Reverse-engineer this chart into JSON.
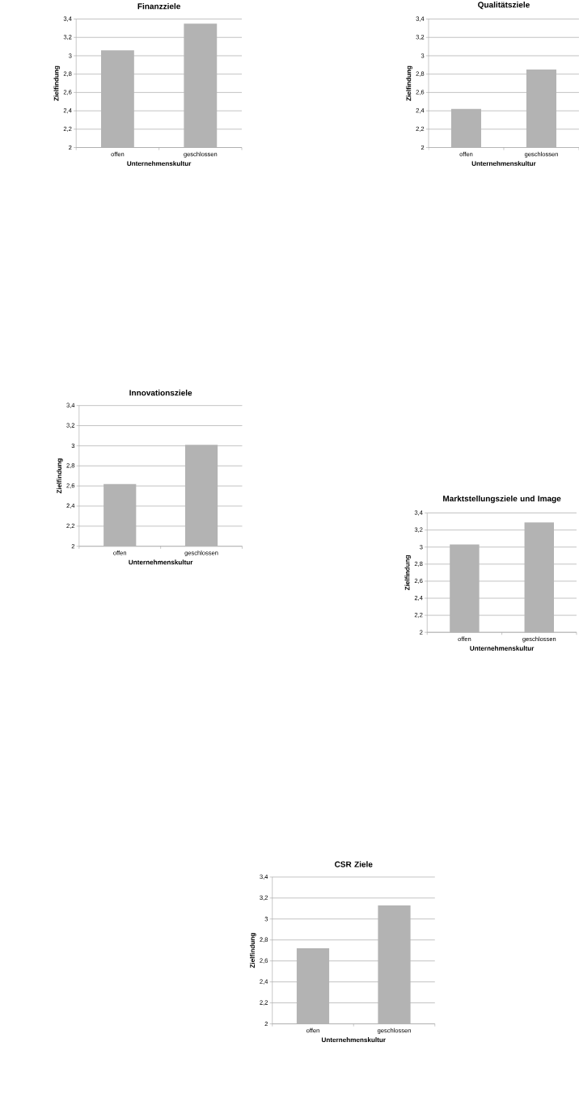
{
  "chart_data": [
    {
      "type": "bar",
      "title": "Finanzziele",
      "xlabel": "Unternehmenskultur",
      "ylabel": "Zielfindung",
      "categories": [
        "offen",
        "geschlossen"
      ],
      "values": [
        3.06,
        3.35
      ],
      "color": "#b3b3b3",
      "ylim": [
        2,
        3.4
      ],
      "yticks": [
        2,
        {
          "value": 2.2,
          "label": "2,2"
        },
        {
          "value": 2.4,
          "label": "2,4"
        },
        {
          "value": 2.6,
          "label": "2,6"
        },
        {
          "value": 2.8,
          "label": "2,8"
        },
        3,
        {
          "value": 3.2,
          "label": "3,2"
        },
        {
          "value": 3.4,
          "label": "3,4"
        }
      ],
      "grid": "y"
    },
    {
      "type": "bar",
      "title": "Qualitätsziele",
      "xlabel": "Unternehmenskultur",
      "ylabel": "Zielfindung",
      "categories": [
        "offen",
        "geschlossen"
      ],
      "values": [
        2.42,
        2.85
      ],
      "color": "#b3b3b3",
      "ylim": [
        2,
        3.4
      ],
      "yticks": [
        2,
        {
          "value": 2.2,
          "label": "2,2"
        },
        {
          "value": 2.4,
          "label": "2,4"
        },
        {
          "value": 2.6,
          "label": "2,6"
        },
        {
          "value": 2.8,
          "label": "2,8"
        },
        3,
        {
          "value": 3.2,
          "label": "3,2"
        },
        {
          "value": 3.4,
          "label": "3,4"
        }
      ],
      "grid": "y"
    },
    {
      "type": "bar",
      "title": "Innovationsziele",
      "xlabel": "Unternehmenskultur",
      "ylabel": "Zielfindung",
      "categories": [
        "offen",
        "geschlossen"
      ],
      "values": [
        2.62,
        3.01
      ],
      "color": "#b3b3b3",
      "ylim": [
        2,
        3.4
      ],
      "yticks": [
        2,
        {
          "value": 2.2,
          "label": "2,2"
        },
        {
          "value": 2.4,
          "label": "2,4"
        },
        {
          "value": 2.6,
          "label": "2,6"
        },
        {
          "value": 2.8,
          "label": "2,8"
        },
        3,
        {
          "value": 3.2,
          "label": "3,2"
        },
        {
          "value": 3.4,
          "label": "3,4"
        }
      ],
      "grid": "y"
    },
    {
      "type": "bar",
      "title": "Marktstellungsziele und Image",
      "xlabel": "Unternehmenskultur",
      "ylabel": "Zielfindung",
      "categories": [
        "offen",
        "geschlossen"
      ],
      "values": [
        3.03,
        3.29
      ],
      "color": "#b3b3b3",
      "ylim": [
        2,
        3.4
      ],
      "yticks": [
        2,
        {
          "value": 2.2,
          "label": "2,2"
        },
        {
          "value": 2.4,
          "label": "2,4"
        },
        {
          "value": 2.6,
          "label": "2,6"
        },
        {
          "value": 2.8,
          "label": "2,8"
        },
        3,
        {
          "value": 3.2,
          "label": "3,2"
        },
        {
          "value": 3.4,
          "label": "3,4"
        }
      ],
      "grid": "y"
    },
    {
      "type": "bar",
      "title": "CSR Ziele",
      "xlabel": "Unternehmenskultur",
      "ylabel": "Zielfindung",
      "categories": [
        "offen",
        "geschlossen"
      ],
      "values": [
        2.72,
        3.13
      ],
      "color": "#b3b3b3",
      "ylim": [
        2,
        3.4
      ],
      "yticks": [
        2,
        {
          "value": 2.2,
          "label": "2,2"
        },
        {
          "value": 2.4,
          "label": "2,4"
        },
        {
          "value": 2.6,
          "label": "2,6"
        },
        {
          "value": 2.8,
          "label": "2,8"
        },
        3,
        {
          "value": 3.2,
          "label": "3,2"
        },
        {
          "value": 3.4,
          "label": "3,4"
        }
      ],
      "grid": "y"
    }
  ]
}
